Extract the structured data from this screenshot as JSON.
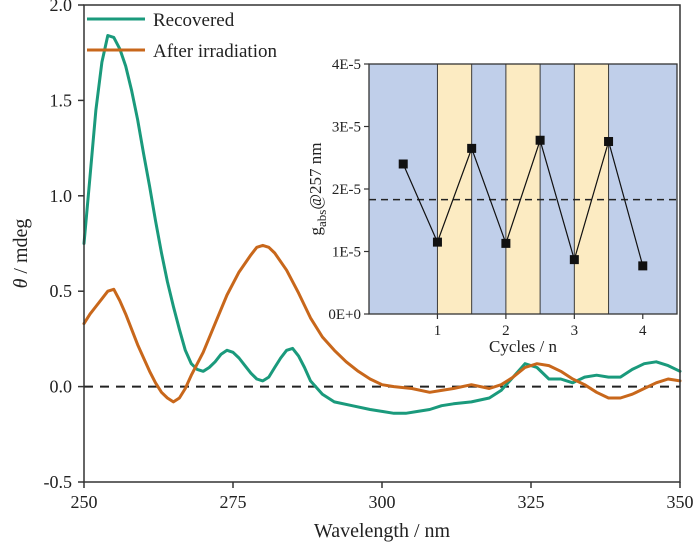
{
  "chart_data": [
    {
      "type": "line",
      "title": "",
      "xlabel": "Wavelength / nm",
      "ylabel_symbol": "θ",
      "ylabel_unit": " / mdeg",
      "xlim": [
        250,
        350
      ],
      "ylim": [
        -0.5,
        2.0
      ],
      "xticks": [
        "250",
        "275",
        "300",
        "325",
        "350"
      ],
      "yticks": [
        "-0.5",
        "0.0",
        "0.5",
        "1.0",
        "1.5",
        "2.0"
      ],
      "reference_line_y": 0,
      "legend_position": "top-left",
      "series": [
        {
          "name": "Recovered",
          "color": "#1a9a7c",
          "x": [
            250,
            251,
            252,
            253,
            254,
            255,
            256,
            257,
            258,
            259,
            260,
            261,
            262,
            263,
            264,
            265,
            266,
            267,
            268,
            269,
            270,
            271,
            272,
            273,
            274,
            275,
            276,
            277,
            278,
            279,
            280,
            281,
            282,
            283,
            284,
            285,
            286,
            287,
            288,
            290,
            292,
            295,
            298,
            300,
            302,
            304,
            306,
            308,
            310,
            312,
            315,
            318,
            320,
            322,
            324,
            326,
            328,
            330,
            332,
            334,
            336,
            338,
            340,
            342,
            344,
            346,
            348,
            350
          ],
          "y": [
            0.75,
            1.1,
            1.45,
            1.7,
            1.84,
            1.83,
            1.77,
            1.68,
            1.55,
            1.4,
            1.22,
            1.05,
            0.87,
            0.7,
            0.55,
            0.42,
            0.3,
            0.19,
            0.12,
            0.09,
            0.08,
            0.1,
            0.13,
            0.17,
            0.19,
            0.18,
            0.15,
            0.11,
            0.07,
            0.04,
            0.03,
            0.05,
            0.1,
            0.15,
            0.19,
            0.2,
            0.16,
            0.1,
            0.03,
            -0.04,
            -0.08,
            -0.1,
            -0.12,
            -0.13,
            -0.14,
            -0.14,
            -0.13,
            -0.12,
            -0.1,
            -0.09,
            -0.08,
            -0.06,
            -0.02,
            0.05,
            0.12,
            0.1,
            0.04,
            0.04,
            0.02,
            0.05,
            0.06,
            0.05,
            0.05,
            0.09,
            0.12,
            0.13,
            0.11,
            0.08
          ]
        },
        {
          "name": "After irradiation",
          "color": "#c8671b",
          "x": [
            250,
            251,
            252,
            253,
            254,
            255,
            256,
            257,
            258,
            259,
            260,
            261,
            262,
            263,
            264,
            265,
            266,
            267,
            268,
            270,
            272,
            274,
            276,
            278,
            279,
            280,
            281,
            282,
            284,
            286,
            288,
            290,
            292,
            294,
            296,
            298,
            300,
            302,
            305,
            308,
            310,
            312,
            315,
            318,
            320,
            322,
            324,
            326,
            328,
            330,
            332,
            334,
            336,
            338,
            340,
            342,
            344,
            346,
            348,
            350
          ],
          "y": [
            0.33,
            0.38,
            0.42,
            0.46,
            0.5,
            0.51,
            0.45,
            0.38,
            0.3,
            0.22,
            0.15,
            0.08,
            0.02,
            -0.03,
            -0.06,
            -0.08,
            -0.06,
            -0.01,
            0.06,
            0.18,
            0.33,
            0.48,
            0.6,
            0.69,
            0.73,
            0.74,
            0.73,
            0.7,
            0.61,
            0.49,
            0.36,
            0.26,
            0.19,
            0.13,
            0.08,
            0.04,
            0.01,
            0.0,
            -0.01,
            -0.03,
            -0.02,
            -0.01,
            0.01,
            -0.01,
            0.01,
            0.05,
            0.1,
            0.12,
            0.11,
            0.08,
            0.04,
            0.01,
            -0.03,
            -0.06,
            -0.06,
            -0.04,
            -0.01,
            0.02,
            0.04,
            0.03
          ]
        }
      ]
    },
    {
      "type": "scatter",
      "title": "",
      "xlabel": "Cycles / n",
      "ylabel_main": "g",
      "ylabel_sub": "abs",
      "ylabel_rest": "@257 nm",
      "xlim": [
        0,
        4.5
      ],
      "ylim": [
        0,
        4e-05
      ],
      "xticks": [
        "1",
        "2",
        "3",
        "4"
      ],
      "yticks": [
        "0E+0",
        "1E-5",
        "2E-5",
        "3E-5",
        "4E-5"
      ],
      "reference_line_y": 1.83e-05,
      "band_colors": {
        "recovered": "#c0cfea",
        "irradiated": "#fcebc2"
      },
      "irradiated_bands": [
        [
          1,
          1.5
        ],
        [
          2,
          2.5
        ],
        [
          3,
          3.5
        ]
      ],
      "marker_color": "#111111",
      "x": [
        0.5,
        1,
        1.5,
        2,
        2.5,
        3,
        3.5,
        4
      ],
      "y": [
        2.4e-05,
        1.15e-05,
        2.65e-05,
        1.13e-05,
        2.78e-05,
        8.7e-06,
        2.76e-05,
        7.7e-06
      ]
    }
  ]
}
